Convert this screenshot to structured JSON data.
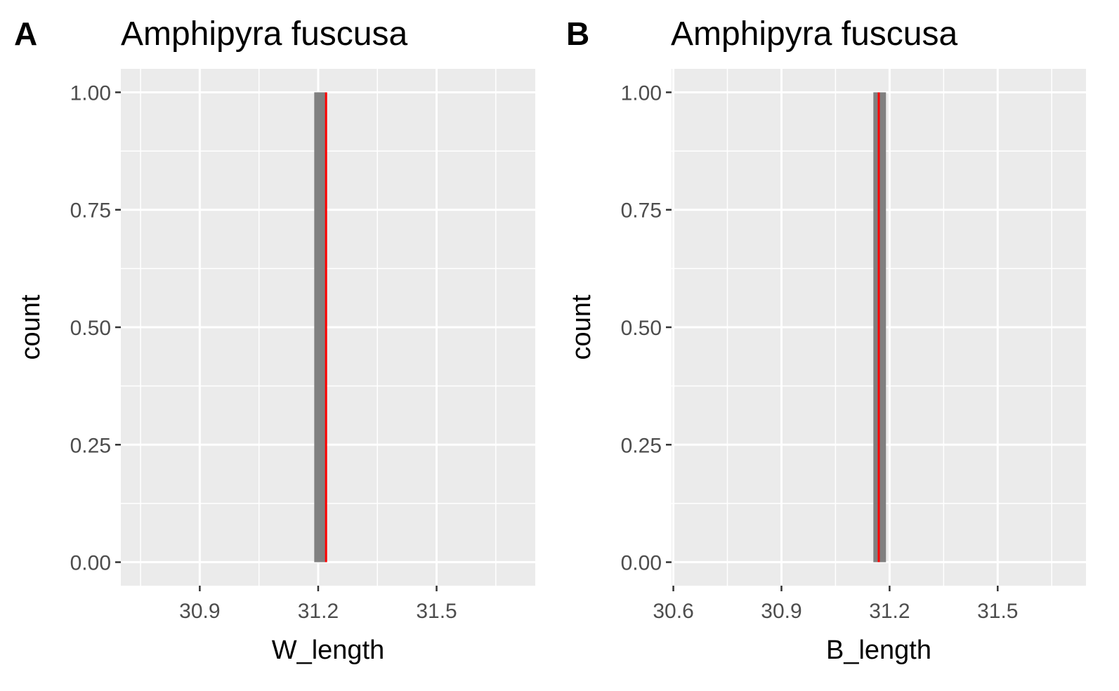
{
  "chart_data": [
    {
      "type": "bar",
      "panel_label": "A",
      "title": "Amphipyra fuscusa",
      "xlabel": "W_length",
      "ylabel": "count",
      "xlim": [
        30.7,
        31.75
      ],
      "ylim": [
        -0.05,
        1.05
      ],
      "x_ticks": [
        30.9,
        31.2,
        31.5
      ],
      "x_tick_labels": [
        "30.9",
        "31.2",
        "31.5"
      ],
      "y_ticks": [
        0,
        0.25,
        0.5,
        0.75,
        1
      ],
      "y_tick_labels": [
        "0.00",
        "0.25",
        "0.50",
        "0.75",
        "1.00"
      ],
      "bars": [
        {
          "x_min": 31.19,
          "x_max": 31.22,
          "count": 1
        }
      ],
      "reference_line": {
        "x": 31.22,
        "color": "#ff0000"
      },
      "grid": true,
      "bar_color": "#808080",
      "panel_background": "#ebebeb"
    },
    {
      "type": "bar",
      "panel_label": "B",
      "title": "Amphipyra fuscusa",
      "xlabel": "B_length",
      "ylabel": "count",
      "xlim": [
        30.595,
        31.745
      ],
      "ylim": [
        -0.05,
        1.05
      ],
      "x_ticks": [
        30.6,
        30.9,
        31.2,
        31.5
      ],
      "x_tick_labels": [
        "30.6",
        "30.9",
        "31.2",
        "31.5"
      ],
      "y_ticks": [
        0,
        0.25,
        0.5,
        0.75,
        1
      ],
      "y_tick_labels": [
        "0.00",
        "0.25",
        "0.50",
        "0.75",
        "1.00"
      ],
      "bars": [
        {
          "x_min": 31.155,
          "x_max": 31.19,
          "count": 1
        }
      ],
      "reference_line": {
        "x": 31.17,
        "color": "#ff0000"
      },
      "grid": true,
      "bar_color": "#808080",
      "panel_background": "#ebebeb"
    }
  ]
}
